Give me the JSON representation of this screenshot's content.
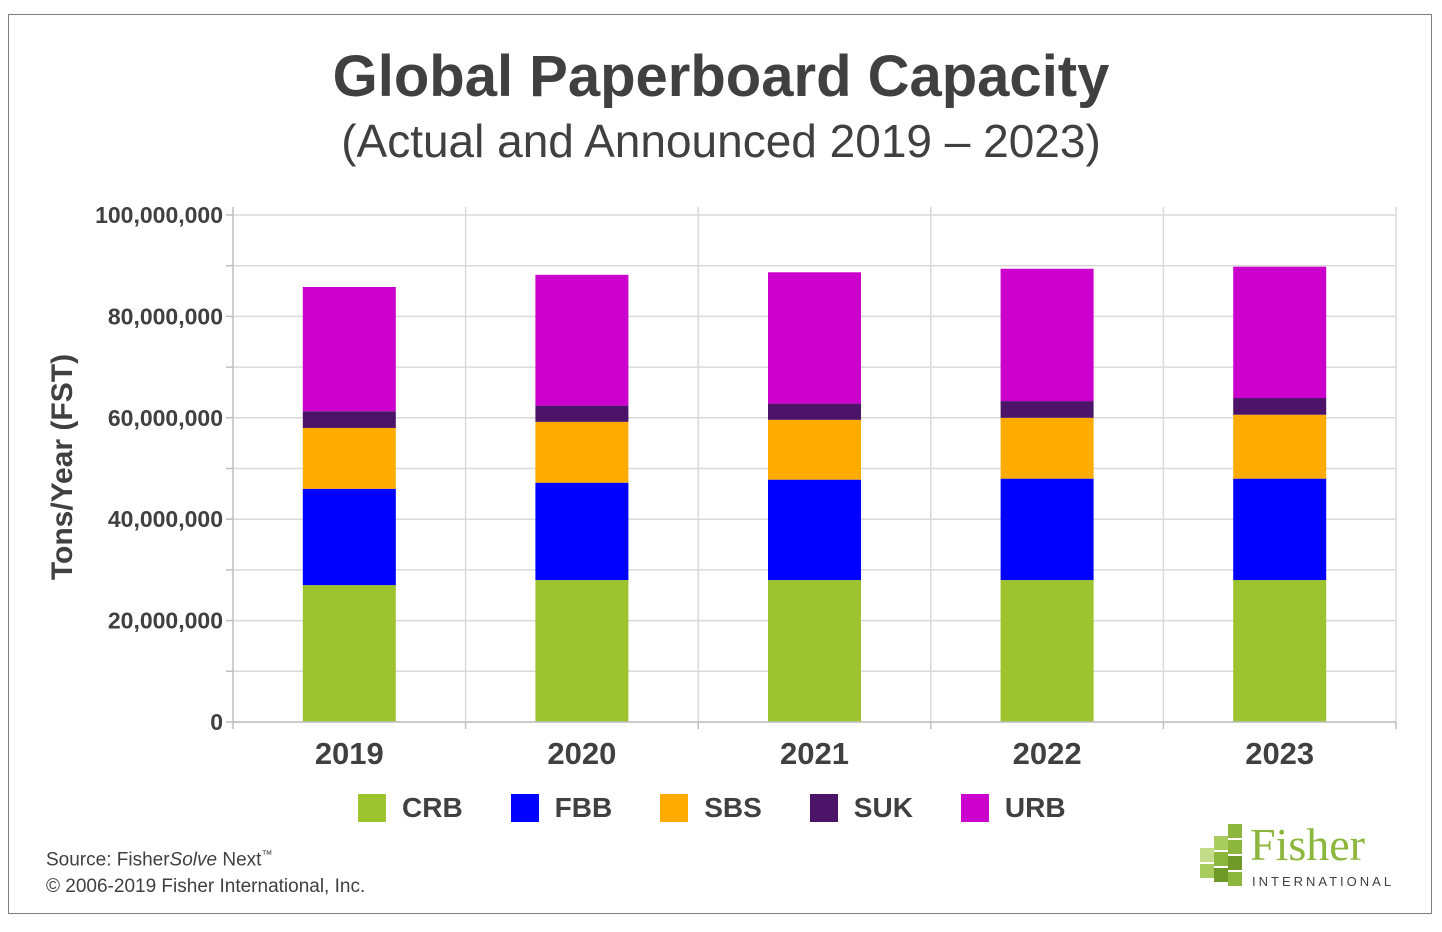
{
  "chart_data": {
    "type": "bar",
    "stacked": true,
    "title": "Global Paperboard Capacity",
    "subtitle": "(Actual and Announced 2019 – 2023)",
    "ylabel": "Tons/Year (FST)",
    "xlabel": "",
    "ylim": [
      0,
      100000000
    ],
    "yticks": [
      "0",
      "20,000,000",
      "40,000,000",
      "60,000,000",
      "80,000,000",
      "100,000,000"
    ],
    "grid": true,
    "legend_position": "bottom",
    "categories": [
      "2019",
      "2020",
      "2021",
      "2022",
      "2023"
    ],
    "series": [
      {
        "name": "CRB",
        "color": "#9dc42f",
        "values": [
          27000000,
          28000000,
          28000000,
          28000000,
          28000000
        ]
      },
      {
        "name": "FBB",
        "color": "#0000ff",
        "values": [
          19000000,
          19200000,
          19800000,
          20000000,
          20000000
        ]
      },
      {
        "name": "SBS",
        "color": "#ffab00",
        "values": [
          12000000,
          12000000,
          11800000,
          12000000,
          12600000
        ]
      },
      {
        "name": "SUK",
        "color": "#4b1468",
        "values": [
          3300000,
          3200000,
          3200000,
          3300000,
          3300000
        ]
      },
      {
        "name": "URB",
        "color": "#cc00cc",
        "values": [
          24500000,
          25800000,
          25900000,
          26100000,
          25900000
        ]
      }
    ]
  },
  "footer": {
    "source_prefix": "Source: Fisher",
    "source_italic": "Solve",
    "source_suffix": " Next",
    "source_tm": "™",
    "copyright": "© 2006-2019 Fisher International, Inc."
  },
  "logo": {
    "name": "Fisher",
    "subtitle": "INTERNATIONAL",
    "color": "#8cb63c"
  }
}
